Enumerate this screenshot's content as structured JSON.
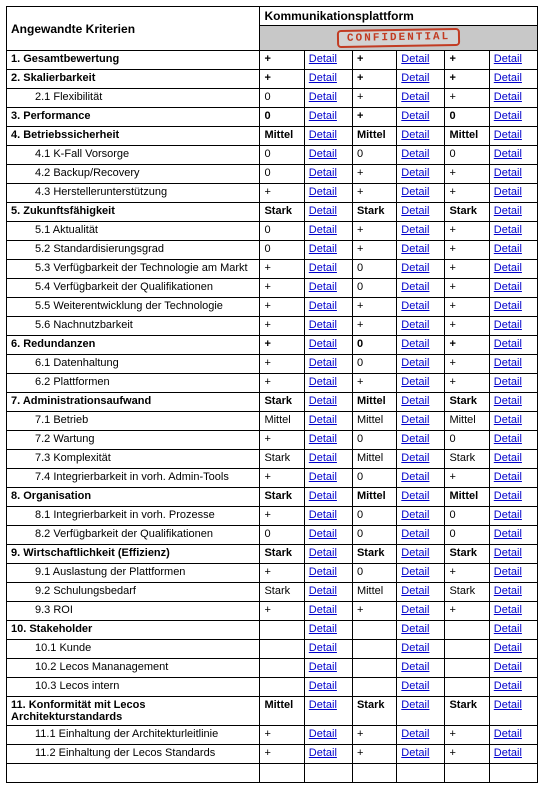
{
  "header": {
    "left": "Angewandte Kriterien",
    "top": "Kommunikationsplattform",
    "redacted_label": "CONFIDENTIAL"
  },
  "detail_link_text": "Detail",
  "rows": [
    {
      "label": "1. Gesamtbewertung",
      "level": "main",
      "vals": [
        "+",
        "+",
        "+"
      ],
      "bold_vals": true
    },
    {
      "label": "2. Skalierbarkeit",
      "level": "main",
      "vals": [
        "+",
        "+",
        "+"
      ],
      "bold_vals": true
    },
    {
      "label": "2.1 Flexibilität",
      "level": "sub",
      "vals": [
        "0",
        "+",
        "+"
      ]
    },
    {
      "label": "3. Performance",
      "level": "main",
      "vals": [
        "0",
        "+",
        "0"
      ],
      "bold_vals": true
    },
    {
      "label": "4. Betriebssicherheit",
      "level": "main",
      "vals": [
        "Mittel",
        "Mittel",
        "Mittel"
      ],
      "bold_vals": true
    },
    {
      "label": "4.1 K-Fall Vorsorge",
      "level": "sub",
      "vals": [
        "0",
        "0",
        "0"
      ]
    },
    {
      "label": "4.2 Backup/Recovery",
      "level": "sub",
      "vals": [
        "0",
        "+",
        "+"
      ]
    },
    {
      "label": "4.3 Herstellerunterstützung",
      "level": "sub",
      "vals": [
        "+",
        "+",
        "+"
      ]
    },
    {
      "label": "5. Zukunftsfähigkeit",
      "level": "main",
      "vals": [
        "Stark",
        "Stark",
        "Stark"
      ],
      "bold_vals": true
    },
    {
      "label": "5.1 Aktualität",
      "level": "sub",
      "vals": [
        "0",
        "+",
        "+"
      ]
    },
    {
      "label": "5.2 Standardisierungsgrad",
      "level": "sub",
      "vals": [
        "0",
        "+",
        "+"
      ]
    },
    {
      "label": "5.3 Verfügbarkeit der Technologie am Markt",
      "level": "sub",
      "vals": [
        "+",
        "0",
        "+"
      ]
    },
    {
      "label": "5.4 Verfügbarkeit der Qualifikationen",
      "level": "sub",
      "vals": [
        "+",
        "0",
        "+"
      ]
    },
    {
      "label": "5.5 Weiterentwicklung der Technologie",
      "level": "sub",
      "vals": [
        "+",
        "+",
        "+"
      ]
    },
    {
      "label": "5.6 Nachnutzbarkeit",
      "level": "sub",
      "vals": [
        "+",
        "+",
        "+"
      ]
    },
    {
      "label": "6. Redundanzen",
      "level": "main",
      "vals": [
        "+",
        "0",
        "+"
      ],
      "bold_vals": true
    },
    {
      "label": "6.1 Datenhaltung",
      "level": "sub",
      "vals": [
        "+",
        "0",
        "+"
      ]
    },
    {
      "label": "6.2 Plattformen",
      "level": "sub",
      "vals": [
        "+",
        "+",
        "+"
      ]
    },
    {
      "label": "7. Administrationsaufwand",
      "level": "main",
      "vals": [
        "Stark",
        "Mittel",
        "Stark"
      ],
      "bold_vals": true
    },
    {
      "label": "7.1 Betrieb",
      "level": "sub",
      "vals": [
        "Mittel",
        "Mittel",
        "Mittel"
      ]
    },
    {
      "label": "7.2 Wartung",
      "level": "sub",
      "vals": [
        "+",
        "0",
        "0"
      ]
    },
    {
      "label": "7.3 Komplexität",
      "level": "sub",
      "vals": [
        "Stark",
        "Mittel",
        "Stark"
      ]
    },
    {
      "label": "7.4 Integrierbarkeit in vorh. Admin-Tools",
      "level": "sub",
      "vals": [
        "+",
        "0",
        "+"
      ]
    },
    {
      "label": "8. Organisation",
      "level": "main",
      "vals": [
        "Stark",
        "Mittel",
        "Mittel"
      ],
      "bold_vals": true
    },
    {
      "label": "8.1 Integrierbarkeit in vorh. Prozesse",
      "level": "sub",
      "vals": [
        "+",
        "0",
        "0"
      ]
    },
    {
      "label": "8.2 Verfügbarkeit der Qualifikationen",
      "level": "sub",
      "vals": [
        "0",
        "0",
        "0"
      ]
    },
    {
      "label": "9. Wirtschaftlichkeit (Effizienz)",
      "level": "main",
      "vals": [
        "Stark",
        "Stark",
        "Stark"
      ],
      "bold_vals": true
    },
    {
      "label": "9.1 Auslastung der Plattformen",
      "level": "sub",
      "vals": [
        "+",
        "0",
        "+"
      ]
    },
    {
      "label": "9.2 Schulungsbedarf",
      "level": "sub",
      "vals": [
        "Stark",
        "Mittel",
        "Stark"
      ]
    },
    {
      "label": "9.3 ROI",
      "level": "sub",
      "vals": [
        "+",
        "+",
        "+"
      ]
    },
    {
      "label": "10. Stakeholder",
      "level": "main",
      "vals": [
        "",
        "",
        ""
      ]
    },
    {
      "label": "10.1 Kunde",
      "level": "sub",
      "vals": [
        "",
        "",
        ""
      ]
    },
    {
      "label": "10.2 Lecos Mananagement",
      "level": "sub",
      "vals": [
        "",
        "",
        ""
      ]
    },
    {
      "label": "10.3 Lecos intern",
      "level": "sub",
      "vals": [
        "",
        "",
        ""
      ]
    },
    {
      "label": "11. Konformität mit Lecos Architekturstandards",
      "level": "main",
      "vals": [
        "Mittel",
        "Stark",
        "Stark"
      ],
      "bold_vals": true
    },
    {
      "label": "11.1 Einhaltung der Architekturleitlinie",
      "level": "sub",
      "vals": [
        "+",
        "+",
        "+"
      ]
    },
    {
      "label": "11.2 Einhaltung der Lecos Standards",
      "level": "sub",
      "vals": [
        "+",
        "+",
        "+"
      ]
    },
    {
      "label": "",
      "level": "main",
      "vals": [
        "",
        "",
        ""
      ],
      "no_links": true
    }
  ]
}
